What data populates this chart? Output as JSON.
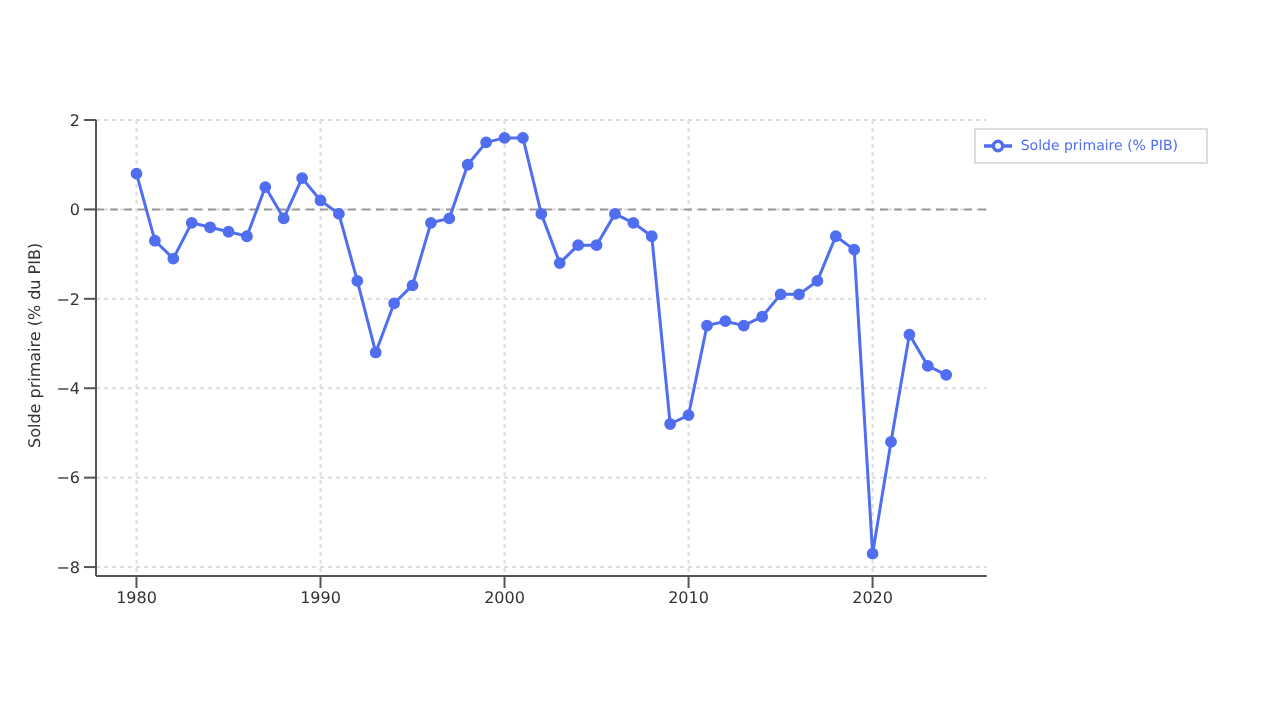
{
  "chart_data": {
    "type": "line",
    "ylabel": "Solde primaire (% du PIB)",
    "x": [
      1980,
      1981,
      1982,
      1983,
      1984,
      1985,
      1986,
      1987,
      1988,
      1989,
      1990,
      1991,
      1992,
      1993,
      1994,
      1995,
      1996,
      1997,
      1998,
      1999,
      2000,
      2001,
      2002,
      2003,
      2004,
      2005,
      2006,
      2007,
      2008,
      2009,
      2010,
      2011,
      2012,
      2013,
      2014,
      2015,
      2016,
      2017,
      2018,
      2019,
      2020,
      2021,
      2022,
      2023,
      2024
    ],
    "series": [
      {
        "name": "Solde primaire (% PIB)",
        "color": "#4f6ef0",
        "values": [
          0.8,
          -0.7,
          -1.1,
          -0.3,
          -0.4,
          -0.5,
          -0.6,
          0.5,
          -0.2,
          0.7,
          0.2,
          -0.1,
          -1.6,
          -3.2,
          -2.1,
          -1.7,
          -0.3,
          -0.2,
          1.0,
          1.5,
          1.6,
          1.6,
          -0.1,
          -1.2,
          -0.8,
          -0.8,
          -0.1,
          -0.3,
          -0.6,
          -4.8,
          -4.6,
          -2.6,
          -2.5,
          -2.6,
          -2.4,
          -1.9,
          -1.9,
          -1.6,
          -0.6,
          -0.9,
          -7.7,
          -5.2,
          -2.8,
          -3.5,
          -3.7
        ]
      }
    ],
    "xlim": [
      1977.8,
      2026.2
    ],
    "xticks": [
      1980,
      1990,
      2000,
      2010,
      2020
    ],
    "ylim": [
      -8.2,
      2
    ],
    "yticks": [
      {
        "value": -8,
        "label": "−8"
      },
      {
        "value": -6,
        "label": "−6"
      },
      {
        "value": -4,
        "label": "−4"
      },
      {
        "value": -2,
        "label": "−2"
      },
      0,
      2
    ],
    "ref_lines": [
      {
        "axis": "y",
        "value": 0,
        "color": "#999999",
        "line_style": "dashed"
      }
    ],
    "grid": true,
    "legend": "top right",
    "marker": "circle",
    "line_style": "solid"
  }
}
